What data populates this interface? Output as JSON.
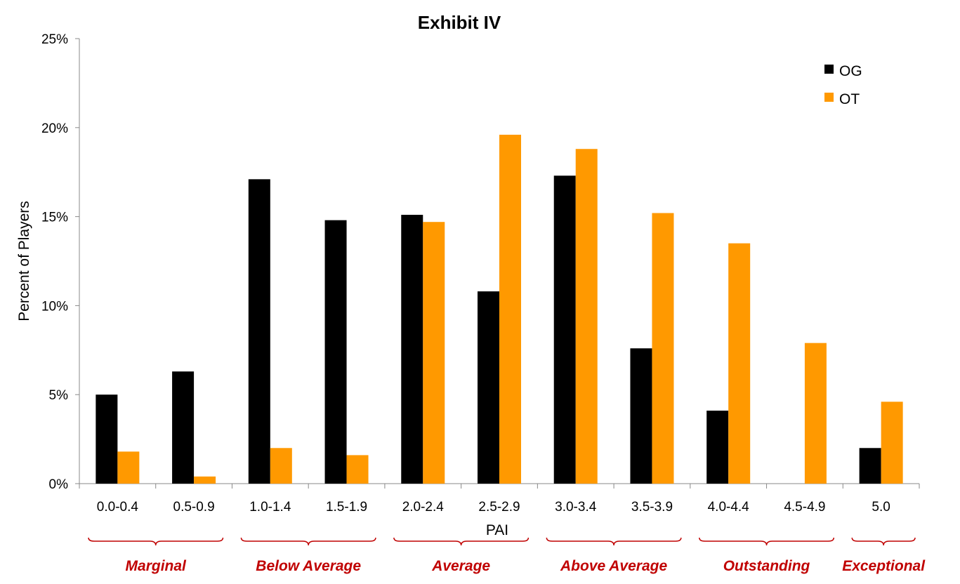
{
  "chart_data": {
    "type": "bar",
    "title": "Exhibit IV",
    "xlabel": "PAI",
    "ylabel": "Percent of Players",
    "ylim": [
      0,
      25
    ],
    "y_tick_labels": [
      "0%",
      "5%",
      "10%",
      "15%",
      "20%",
      "25%"
    ],
    "y_tick_values": [
      0,
      5,
      10,
      15,
      20,
      25
    ],
    "grid": false,
    "legend_position": "top-right",
    "categories": [
      "0.0-0.4",
      "0.5-0.9",
      "1.0-1.4",
      "1.5-1.9",
      "2.0-2.4",
      "2.5-2.9",
      "3.0-3.4",
      "3.5-3.9",
      "4.0-4.4",
      "4.5-4.9",
      "5.0"
    ],
    "series": [
      {
        "name": "OG",
        "color": "#000000",
        "values": [
          5.0,
          6.3,
          17.1,
          14.8,
          15.1,
          10.8,
          17.3,
          7.6,
          4.1,
          0,
          2.0
        ]
      },
      {
        "name": "OT",
        "color": "#FF9900",
        "values": [
          1.8,
          0.4,
          2.0,
          1.6,
          14.7,
          19.6,
          18.8,
          15.2,
          13.5,
          7.9,
          4.6
        ]
      }
    ],
    "category_groups": [
      {
        "label": "Marginal",
        "from": 0,
        "to": 1
      },
      {
        "label": "Below Average",
        "from": 2,
        "to": 3
      },
      {
        "label": "Average",
        "from": 4,
        "to": 5
      },
      {
        "label": "Above Average",
        "from": 6,
        "to": 7
      },
      {
        "label": "Outstanding",
        "from": 8,
        "to": 9
      },
      {
        "label": "Exceptional",
        "from": 10,
        "to": 10
      }
    ],
    "group_label_color": "#C00000"
  }
}
